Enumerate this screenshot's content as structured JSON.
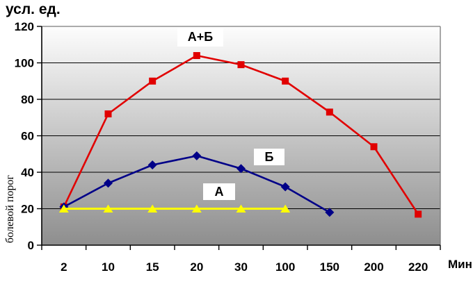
{
  "title": "усл. ед.",
  "y_axis_label": "болевой порог",
  "x_axis_label": "Мин",
  "chart_data": {
    "type": "line",
    "title": "усл. ед.",
    "xlabel": "Мин",
    "ylabel": "болевой порог",
    "categories": [
      "2",
      "10",
      "15",
      "20",
      "30",
      "100",
      "150",
      "200",
      "220"
    ],
    "series": [
      {
        "name": "А+Б",
        "color": "#e10000",
        "marker": "square",
        "values": [
          21,
          72,
          90,
          104,
          99,
          90,
          73,
          54,
          17
        ]
      },
      {
        "name": "Б",
        "color": "#000088",
        "marker": "diamond",
        "values": [
          21,
          34,
          44,
          49,
          42,
          32,
          18
        ]
      },
      {
        "name": "А",
        "color": "#ffff00",
        "marker": "triangle",
        "values": [
          20,
          20,
          20,
          20,
          20,
          20
        ]
      }
    ],
    "ylim": [
      0,
      120
    ],
    "yticks": [
      0,
      20,
      40,
      60,
      80,
      100,
      120
    ],
    "grid": true,
    "legend_position": "inline-annotations",
    "plot_background_gradient": [
      "#fdfdfd",
      "#8e8e8e"
    ],
    "annotations": [
      {
        "text": "А+Б",
        "series": "А+Б"
      },
      {
        "text": "Б",
        "series": "Б"
      },
      {
        "text": "А",
        "series": "А"
      }
    ]
  }
}
